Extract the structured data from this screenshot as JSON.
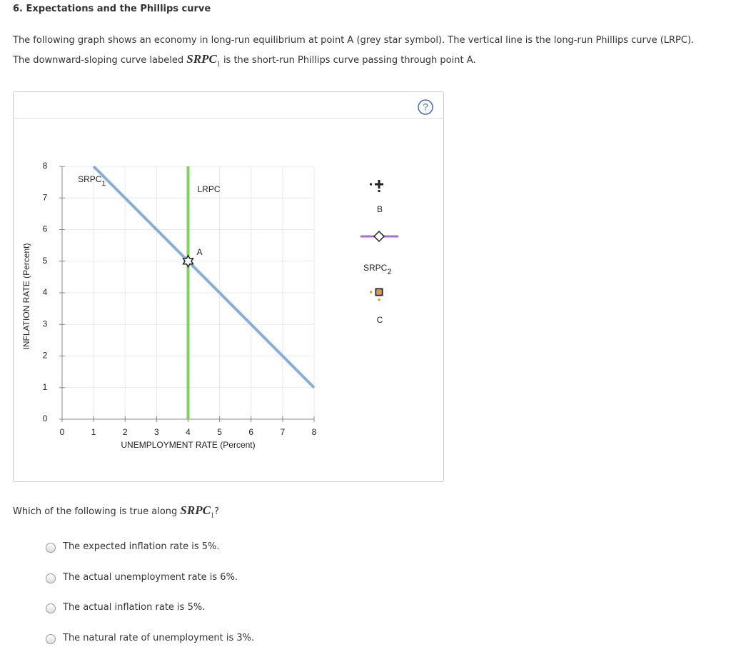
{
  "header": {
    "title": "6. Expectations and the Phillips curve"
  },
  "intro": {
    "line1": "The following graph shows an economy in long-run equilibrium at point A (grey star symbol). The vertical line is the long-run Phillips curve (LRPC).",
    "line2_before": "The downward-sloping curve labeled",
    "symbol": "SRPC",
    "subscript": "1",
    "line2_after": "is the short-run Phillips curve passing through point A."
  },
  "chart_data": {
    "type": "line",
    "xlabel": "UNEMPLOYMENT RATE (Percent)",
    "ylabel": "INFLATION RATE (Percent)",
    "xlim": [
      0,
      8
    ],
    "ylim": [
      0,
      8
    ],
    "xticks": [
      0,
      1,
      2,
      3,
      4,
      5,
      6,
      7,
      8
    ],
    "yticks": [
      0,
      1,
      2,
      3,
      4,
      5,
      6,
      7,
      8
    ],
    "grid": true,
    "series": [
      {
        "name": "SRPC",
        "subscript": "1",
        "color": "#87aed8",
        "x": [
          1,
          8
        ],
        "values": [
          8,
          1
        ]
      },
      {
        "name": "LRPC",
        "color": "#7ed35a",
        "x": [
          4,
          4
        ],
        "values": [
          0,
          8
        ]
      }
    ],
    "points": [
      {
        "name": "A",
        "x": 4,
        "y": 5
      }
    ],
    "palette": [
      {
        "name": "B",
        "color": "#222222"
      },
      {
        "name": "SRPC",
        "subscript": "2",
        "color": "#a46fd0"
      },
      {
        "name": "C",
        "color": "#f0961e"
      }
    ]
  },
  "question": {
    "before": "Which of the following is true along",
    "symbol": "SRPC",
    "subscript": "1",
    "after": "?"
  },
  "options": [
    "The expected inflation rate is 5%.",
    "The actual unemployment rate is 6%.",
    "The actual inflation rate is 5%.",
    "The natural rate of unemployment is 3%."
  ]
}
